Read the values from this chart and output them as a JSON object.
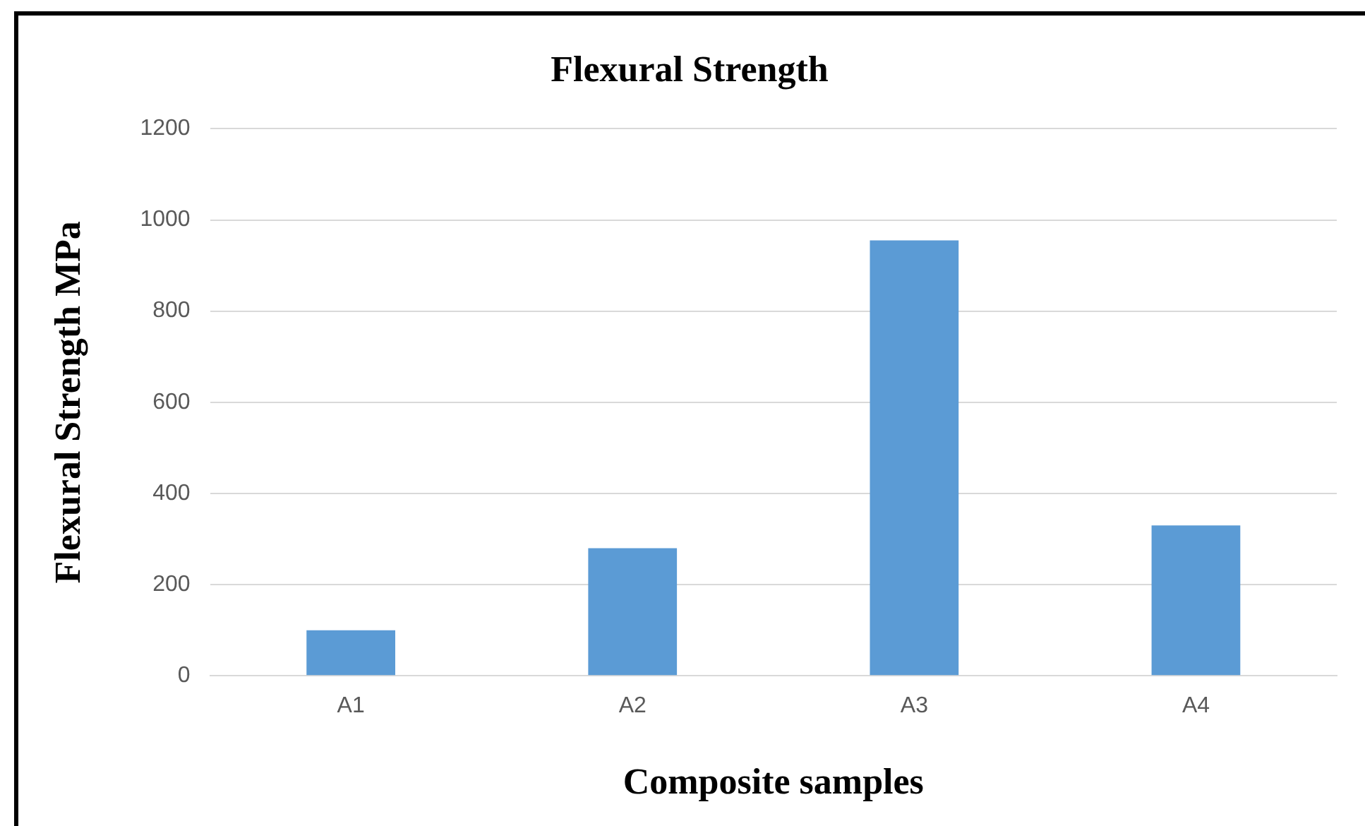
{
  "chart_data": {
    "type": "bar",
    "title": "Flexural Strength",
    "xlabel": "Composite samples",
    "ylabel": "Flexural Strength MPa",
    "categories": [
      "A1",
      "A2",
      "A3",
      "A4"
    ],
    "values": [
      100,
      280,
      955,
      330
    ],
    "color": "#5b9bd5",
    "ylim": [
      0,
      1200
    ],
    "yticks": [
      0,
      200,
      400,
      600,
      800,
      1000,
      1200
    ],
    "grid": "y"
  }
}
